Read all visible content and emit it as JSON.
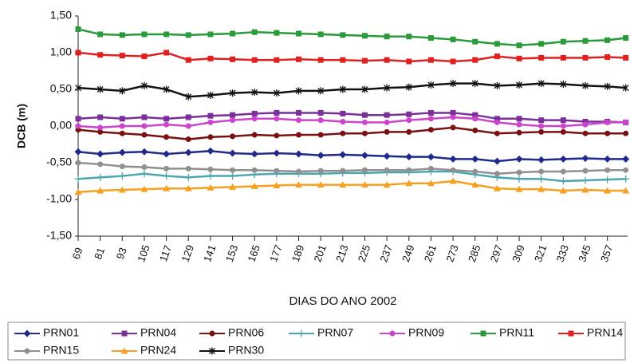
{
  "chart_data": {
    "type": "line",
    "y_label": "DCB (m)",
    "x_label": "DIAS DO ANO 2002",
    "x": [
      69,
      81,
      93,
      105,
      117,
      129,
      141,
      153,
      165,
      177,
      189,
      201,
      213,
      225,
      237,
      249,
      261,
      273,
      285,
      297,
      309,
      321,
      333,
      345,
      357,
      367
    ],
    "xlim": [
      69,
      368
    ],
    "xticks": [
      69,
      81,
      93,
      105,
      117,
      129,
      141,
      153,
      165,
      177,
      189,
      201,
      213,
      225,
      237,
      249,
      261,
      273,
      285,
      297,
      309,
      321,
      333,
      345,
      357
    ],
    "ylim": [
      -1.5,
      1.5
    ],
    "yticks": [
      {
        "value": -1.5,
        "label": "-1,50"
      },
      {
        "value": -1,
        "label": "-1,00"
      },
      {
        "value": -0.5,
        "label": "-0,50"
      },
      {
        "value": 0,
        "label": "0,00"
      },
      {
        "value": 0.5,
        "label": "0,50"
      },
      {
        "value": 1,
        "label": "1,00"
      },
      {
        "value": 1.5,
        "label": "1,50"
      }
    ],
    "series": [
      {
        "name": "PRN01",
        "color": "#1f2a8c",
        "marker": "diamond",
        "values": [
          -0.35,
          -0.38,
          -0.36,
          -0.35,
          -0.38,
          -0.36,
          -0.34,
          -0.37,
          -0.38,
          -0.37,
          -0.38,
          -0.4,
          -0.39,
          -0.4,
          -0.41,
          -0.42,
          -0.42,
          -0.45,
          -0.45,
          -0.48,
          -0.45,
          -0.46,
          -0.45,
          -0.44,
          -0.45,
          -0.45
        ]
      },
      {
        "name": "PRN04",
        "color": "#7a2f9a",
        "marker": "square",
        "values": [
          0.1,
          0.12,
          0.1,
          0.12,
          0.1,
          0.12,
          0.14,
          0.15,
          0.17,
          0.18,
          0.18,
          0.18,
          0.17,
          0.15,
          0.15,
          0.16,
          0.18,
          0.18,
          0.15,
          0.1,
          0.1,
          0.08,
          0.08,
          0.06,
          0.06,
          0.05
        ]
      },
      {
        "name": "PRN06",
        "color": "#7a1010",
        "marker": "circle",
        "values": [
          -0.05,
          -0.08,
          -0.1,
          -0.12,
          -0.15,
          -0.18,
          -0.15,
          -0.14,
          -0.12,
          -0.13,
          -0.12,
          -0.12,
          -0.1,
          -0.1,
          -0.08,
          -0.08,
          -0.05,
          -0.02,
          -0.06,
          -0.1,
          -0.09,
          -0.08,
          -0.08,
          -0.1,
          -0.1,
          -0.1
        ]
      },
      {
        "name": "PRN07",
        "color": "#4aa6b0",
        "marker": "plus",
        "values": [
          -0.72,
          -0.7,
          -0.68,
          -0.65,
          -0.68,
          -0.7,
          -0.68,
          -0.68,
          -0.66,
          -0.65,
          -0.65,
          -0.65,
          -0.64,
          -0.64,
          -0.63,
          -0.63,
          -0.62,
          -0.62,
          -0.66,
          -0.7,
          -0.72,
          -0.72,
          -0.75,
          -0.74,
          -0.73,
          -0.72
        ]
      },
      {
        "name": "PRN09",
        "color": "#cc44cc",
        "marker": "circle",
        "values": [
          0.0,
          -0.02,
          0.0,
          0.0,
          0.02,
          0.0,
          0.05,
          0.08,
          0.1,
          0.1,
          0.08,
          0.08,
          0.06,
          0.05,
          0.05,
          0.08,
          0.1,
          0.12,
          0.1,
          0.05,
          0.02,
          0.0,
          0.0,
          0.02,
          0.05,
          0.05
        ]
      },
      {
        "name": "PRN11",
        "color": "#2a9a3a",
        "marker": "square",
        "values": [
          1.32,
          1.25,
          1.24,
          1.25,
          1.25,
          1.24,
          1.25,
          1.26,
          1.28,
          1.27,
          1.26,
          1.25,
          1.24,
          1.23,
          1.22,
          1.22,
          1.2,
          1.18,
          1.15,
          1.12,
          1.1,
          1.12,
          1.15,
          1.16,
          1.17,
          1.2
        ]
      },
      {
        "name": "PRN14",
        "color": "#e02020",
        "marker": "square",
        "values": [
          1.0,
          0.97,
          0.96,
          0.95,
          1.0,
          0.9,
          0.92,
          0.91,
          0.9,
          0.9,
          0.91,
          0.9,
          0.9,
          0.89,
          0.9,
          0.88,
          0.9,
          0.88,
          0.9,
          0.95,
          0.92,
          0.93,
          0.93,
          0.93,
          0.94,
          0.93
        ]
      },
      {
        "name": "PRN15",
        "color": "#909090",
        "marker": "circle",
        "values": [
          -0.5,
          -0.52,
          -0.55,
          -0.56,
          -0.58,
          -0.58,
          -0.59,
          -0.6,
          -0.6,
          -0.61,
          -0.62,
          -0.61,
          -0.61,
          -0.6,
          -0.6,
          -0.6,
          -0.58,
          -0.6,
          -0.62,
          -0.65,
          -0.63,
          -0.62,
          -0.62,
          -0.61,
          -0.6,
          -0.6
        ]
      },
      {
        "name": "PRN24",
        "color": "#f5a020",
        "marker": "triangle",
        "values": [
          -0.9,
          -0.88,
          -0.87,
          -0.86,
          -0.85,
          -0.85,
          -0.84,
          -0.83,
          -0.82,
          -0.81,
          -0.8,
          -0.8,
          -0.8,
          -0.8,
          -0.8,
          -0.78,
          -0.78,
          -0.75,
          -0.8,
          -0.85,
          -0.86,
          -0.86,
          -0.88,
          -0.87,
          -0.88,
          -0.88
        ]
      },
      {
        "name": "PRN30",
        "color": "#111111",
        "marker": "star",
        "values": [
          0.52,
          0.5,
          0.48,
          0.55,
          0.5,
          0.4,
          0.42,
          0.45,
          0.46,
          0.45,
          0.48,
          0.48,
          0.5,
          0.5,
          0.52,
          0.53,
          0.56,
          0.58,
          0.58,
          0.55,
          0.56,
          0.58,
          0.57,
          0.55,
          0.54,
          0.52
        ]
      }
    ]
  }
}
